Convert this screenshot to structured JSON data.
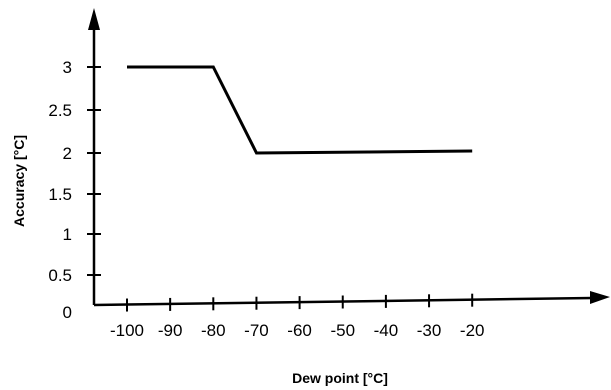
{
  "chart_data": {
    "type": "line",
    "title": "",
    "xlabel": "Dew point [°C]",
    "ylabel": "Accuracy [°C]",
    "x_ticks": [
      -100,
      -90,
      -80,
      -70,
      -60,
      -50,
      -40,
      -30,
      -20
    ],
    "x_tick_labels": [
      "-100",
      "-90",
      "-80",
      "-70",
      "-60",
      "-50",
      "-40",
      "-30",
      "-20"
    ],
    "y_ticks": [
      0,
      0.5,
      1,
      1.5,
      2,
      2.5,
      3
    ],
    "y_tick_labels": [
      "0",
      "0.5",
      "1",
      "1.5",
      "2",
      "2.5",
      "3"
    ],
    "xlim": [
      -105,
      -11
    ],
    "ylim": [
      0,
      3.5
    ],
    "grid": false,
    "legend": "none",
    "series": [
      {
        "x": [
          -100,
          -80,
          -70,
          -20
        ],
        "y": [
          3,
          3,
          2,
          2
        ],
        "color": "#000000"
      }
    ]
  }
}
